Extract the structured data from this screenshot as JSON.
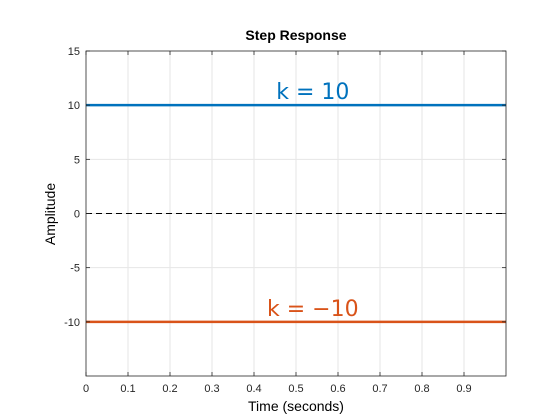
{
  "chart_data": {
    "type": "line",
    "title": "Step Response",
    "xlabel": "Time (seconds)",
    "ylabel": "Amplitude",
    "xlim": [
      0,
      1
    ],
    "ylim": [
      -15,
      15
    ],
    "grid": true,
    "x_ticks": [
      0,
      0.1,
      0.2,
      0.3,
      0.4,
      0.5,
      0.6,
      0.7,
      0.8,
      0.9
    ],
    "x_tick_labels": [
      "0",
      "0.1",
      "0.2",
      "0.3",
      "0.4",
      "0.5",
      "0.6",
      "0.7",
      "0.8",
      "0.9"
    ],
    "y_ticks": [
      15,
      10,
      5,
      0,
      -5,
      -10
    ],
    "y_tick_labels": [
      "15",
      "10",
      "5",
      "0",
      "-5",
      "-10"
    ],
    "series": [
      {
        "x": [
          0,
          1
        ],
        "values": [
          10,
          10
        ],
        "color": "#0072BD",
        "style": "solid"
      },
      {
        "x": [
          0,
          1
        ],
        "values": [
          -10,
          -10
        ],
        "color": "#D95319",
        "style": "solid"
      },
      {
        "x": [
          0,
          1
        ],
        "values": [
          0,
          0
        ],
        "color": "#000000",
        "style": "dashed"
      }
    ],
    "annotations": [
      {
        "text": "k = 10",
        "x": 0.54,
        "y": 10,
        "color": "#0072BD"
      },
      {
        "text": "k = −10",
        "x": 0.54,
        "y": -10,
        "color": "#D95319"
      }
    ]
  }
}
